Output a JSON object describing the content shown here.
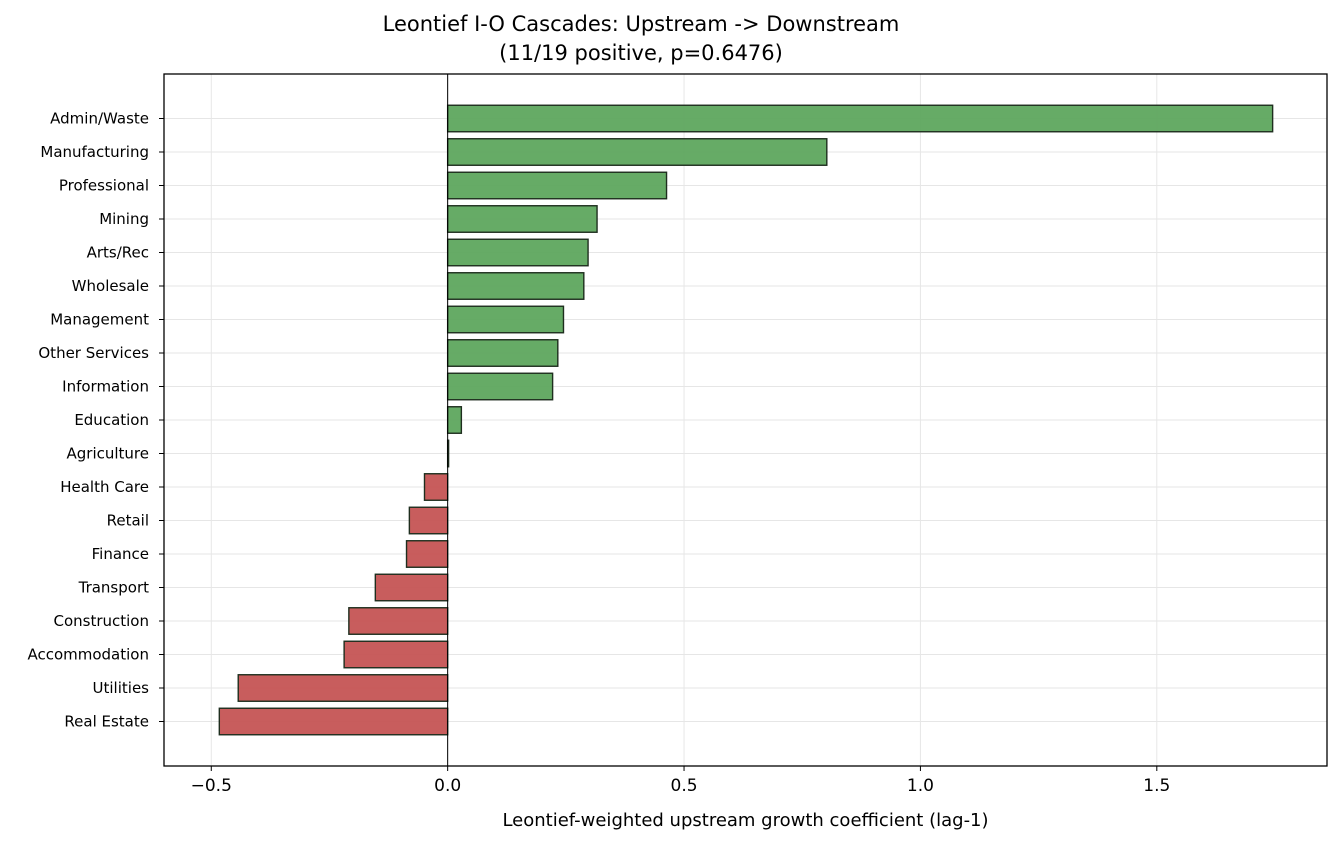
{
  "chart_data": {
    "type": "bar",
    "orientation": "horizontal",
    "title": "Leontief I-O Cascades: Upstream -> Downstream",
    "subtitle": "(11/19 positive, p=0.6476)",
    "xlabel": "Leontief-weighted upstream growth coefficient (lag-1)",
    "ylabel": "",
    "xlim": [
      -0.6,
      1.86
    ],
    "xticks": [
      -0.5,
      0.0,
      0.5,
      1.0,
      1.5
    ],
    "xtick_labels": [
      "−0.5",
      "0.0",
      "0.5",
      "1.0",
      "1.5"
    ],
    "grid": true,
    "categories": [
      "Admin/Waste",
      "Manufacturing",
      "Professional",
      "Mining",
      "Arts/Rec",
      "Wholesale",
      "Management",
      "Other Services",
      "Information",
      "Education",
      "Agriculture",
      "Health Care",
      "Retail",
      "Finance",
      "Transport",
      "Construction",
      "Accommodation",
      "Utilities",
      "Real Estate"
    ],
    "values": [
      1.745,
      0.802,
      0.463,
      0.316,
      0.297,
      0.288,
      0.245,
      0.233,
      0.222,
      0.029,
      0.002,
      -0.049,
      -0.081,
      -0.087,
      -0.153,
      -0.209,
      -0.219,
      -0.443,
      -0.483
    ],
    "colors": {
      "positive": "#5aa55a",
      "negative": "#c45151",
      "edge": "#1e2e1e",
      "grid": "#e6e6e6"
    }
  }
}
